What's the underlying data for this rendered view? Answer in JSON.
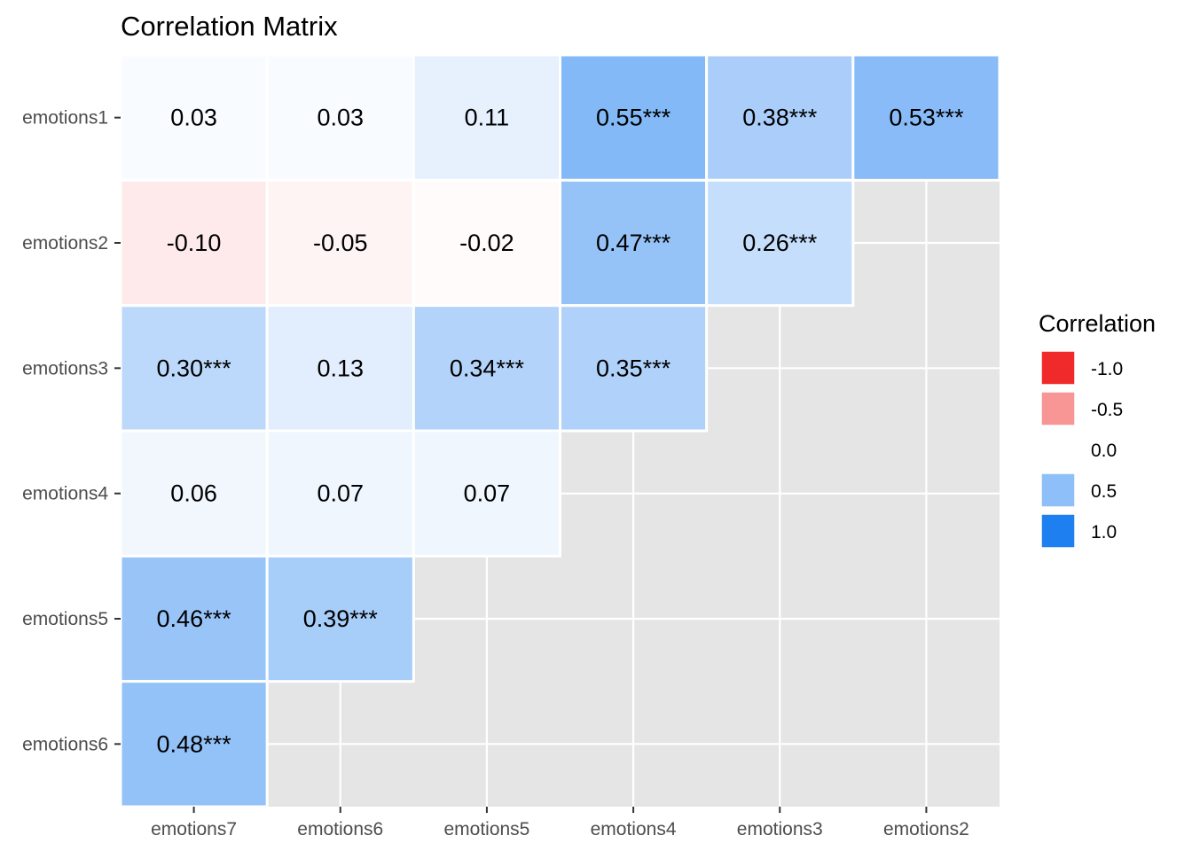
{
  "chart_data": {
    "type": "heatmap",
    "title": "Correlation Matrix",
    "xlabel": "",
    "ylabel": "",
    "x_categories": [
      "emotions7",
      "emotions6",
      "emotions5",
      "emotions4",
      "emotions3",
      "emotions2"
    ],
    "y_categories": [
      "emotions1",
      "emotions2",
      "emotions3",
      "emotions4",
      "emotions5",
      "emotions6"
    ],
    "cells": [
      {
        "x": "emotions7",
        "y": "emotions1",
        "value": 0.03,
        "label": "0.03"
      },
      {
        "x": "emotions6",
        "y": "emotions1",
        "value": 0.03,
        "label": "0.03"
      },
      {
        "x": "emotions5",
        "y": "emotions1",
        "value": 0.11,
        "label": "0.11"
      },
      {
        "x": "emotions4",
        "y": "emotions1",
        "value": 0.55,
        "label": "0.55***"
      },
      {
        "x": "emotions3",
        "y": "emotions1",
        "value": 0.38,
        "label": "0.38***"
      },
      {
        "x": "emotions2",
        "y": "emotions1",
        "value": 0.53,
        "label": "0.53***"
      },
      {
        "x": "emotions7",
        "y": "emotions2",
        "value": -0.1,
        "label": "-0.10"
      },
      {
        "x": "emotions6",
        "y": "emotions2",
        "value": -0.05,
        "label": "-0.05"
      },
      {
        "x": "emotions5",
        "y": "emotions2",
        "value": -0.02,
        "label": "-0.02"
      },
      {
        "x": "emotions4",
        "y": "emotions2",
        "value": 0.47,
        "label": "0.47***"
      },
      {
        "x": "emotions3",
        "y": "emotions2",
        "value": 0.26,
        "label": "0.26***"
      },
      {
        "x": "emotions7",
        "y": "emotions3",
        "value": 0.3,
        "label": "0.30***"
      },
      {
        "x": "emotions6",
        "y": "emotions3",
        "value": 0.13,
        "label": "0.13"
      },
      {
        "x": "emotions5",
        "y": "emotions3",
        "value": 0.34,
        "label": "0.34***"
      },
      {
        "x": "emotions4",
        "y": "emotions3",
        "value": 0.35,
        "label": "0.35***"
      },
      {
        "x": "emotions7",
        "y": "emotions4",
        "value": 0.06,
        "label": "0.06"
      },
      {
        "x": "emotions6",
        "y": "emotions4",
        "value": 0.07,
        "label": "0.07"
      },
      {
        "x": "emotions5",
        "y": "emotions4",
        "value": 0.07,
        "label": "0.07"
      },
      {
        "x": "emotions7",
        "y": "emotions5",
        "value": 0.46,
        "label": "0.46***"
      },
      {
        "x": "emotions6",
        "y": "emotions5",
        "value": 0.39,
        "label": "0.39***"
      },
      {
        "x": "emotions7",
        "y": "emotions6",
        "value": 0.48,
        "label": "0.48***"
      }
    ],
    "color_scale": {
      "min": -1.0,
      "max": 1.0,
      "low": "#f02a2a",
      "mid": "#ffffff",
      "high": "#1e7ff0"
    },
    "legend": {
      "title": "Correlation",
      "placement": "right",
      "entries": [
        {
          "label": "-1.0",
          "value": -1.0
        },
        {
          "label": "-0.5",
          "value": -0.5
        },
        {
          "label": "0.0",
          "value": 0.0
        },
        {
          "label": "0.5",
          "value": 0.5
        },
        {
          "label": "1.0",
          "value": 1.0
        }
      ]
    },
    "panel_background": "#e5e5e5",
    "grid": true
  }
}
